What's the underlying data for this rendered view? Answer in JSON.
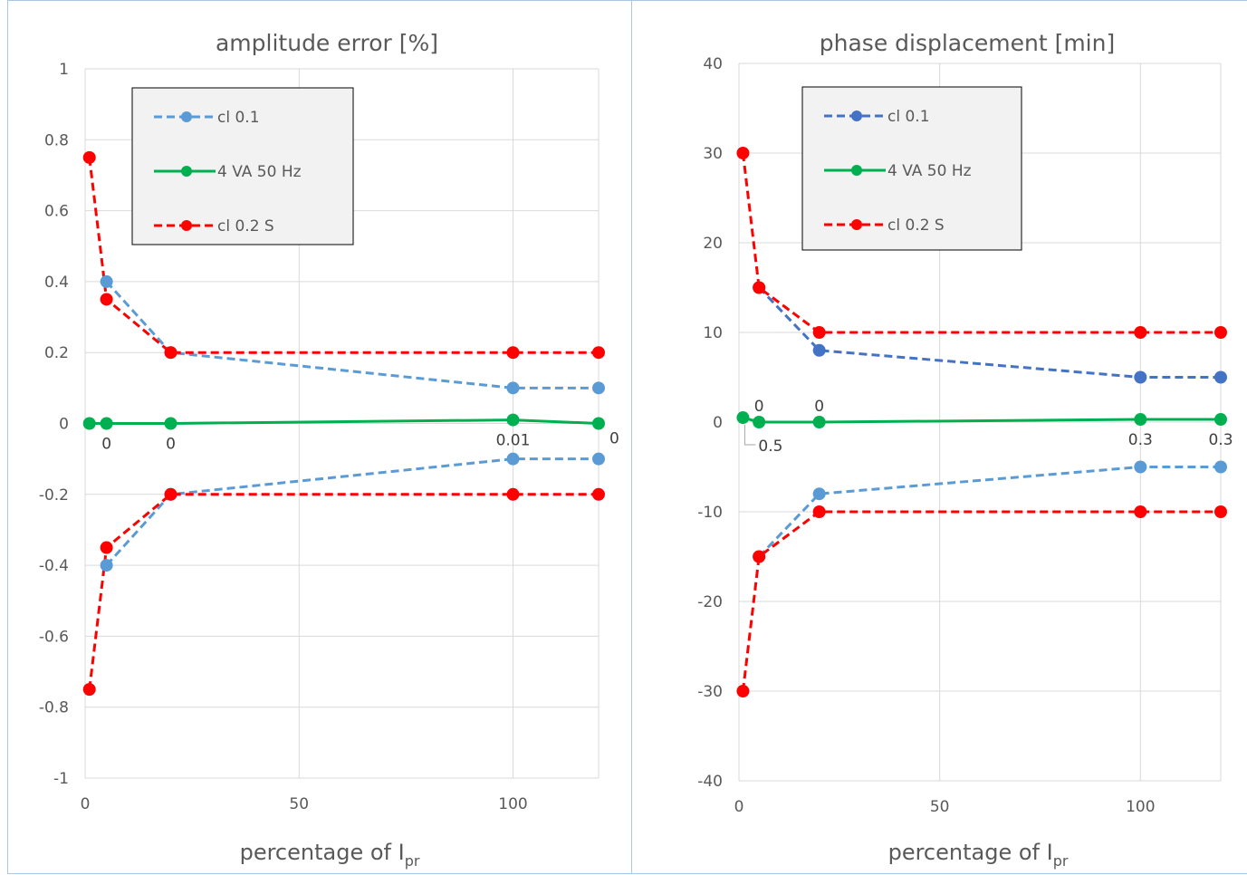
{
  "chart_data": [
    {
      "type": "line",
      "title": "amplitude error [%]",
      "xlabel": "percentage of ",
      "xlabel_symbol": "I",
      "xlabel_sub": "pr",
      "ylabel": "",
      "xlim": [
        0,
        120
      ],
      "ylim": [
        -1,
        1
      ],
      "xticks": [
        0,
        50,
        100
      ],
      "yticks": [
        -1,
        -0.8,
        -0.6,
        -0.4,
        -0.2,
        0,
        0.2,
        0.4,
        0.6,
        0.8,
        1
      ],
      "grid": true,
      "legend_position": "top-left",
      "series": [
        {
          "name": "cl 0.1",
          "color": "#5b9bd5",
          "style": "dashed",
          "x": [
            5,
            20,
            100,
            120
          ],
          "values": [
            0.4,
            0.2,
            0.1,
            0.1
          ]
        },
        {
          "name": "",
          "color": "#5b9bd5",
          "style": "dashed",
          "x": [
            5,
            20,
            100,
            120
          ],
          "values": [
            -0.4,
            -0.2,
            -0.1,
            -0.1
          ]
        },
        {
          "name": "4 VA 50 Hz",
          "color": "#00b050",
          "style": "solid",
          "x": [
            1,
            5,
            20,
            100,
            120
          ],
          "values": [
            0,
            0,
            0,
            0.01,
            0
          ]
        },
        {
          "name": "cl 0.2 S",
          "color": "#ff0000",
          "style": "dashed",
          "x": [
            1,
            5,
            20,
            100,
            120
          ],
          "values": [
            0.75,
            0.35,
            0.2,
            0.2,
            0.2
          ]
        },
        {
          "name": "",
          "color": "#ff0000",
          "style": "dashed",
          "x": [
            1,
            5,
            20,
            100,
            120
          ],
          "values": [
            -0.75,
            -0.35,
            -0.2,
            -0.2,
            -0.2
          ]
        }
      ],
      "data_labels": [
        {
          "x": 5,
          "y": 0,
          "text": "0",
          "pos": "below"
        },
        {
          "x": 20,
          "y": 0,
          "text": "0",
          "pos": "below"
        },
        {
          "x": 100,
          "y": 0.01,
          "text": "0.01",
          "pos": "below"
        },
        {
          "x": 120,
          "y": 0,
          "text": "0",
          "pos": "right"
        }
      ]
    },
    {
      "type": "line",
      "title": "phase displacement [min]",
      "xlabel": "percentage of ",
      "xlabel_symbol": "I",
      "xlabel_sub": "pr",
      "ylabel": "",
      "xlim": [
        0,
        120
      ],
      "ylim": [
        -40,
        40
      ],
      "xticks": [
        0,
        50,
        100
      ],
      "yticks": [
        -40,
        -30,
        -20,
        -10,
        0,
        10,
        20,
        30,
        40
      ],
      "grid": true,
      "legend_position": "top-left",
      "series": [
        {
          "name": "cl 0.1",
          "color": "#4472c4",
          "style": "dashed",
          "x": [
            5,
            20,
            100,
            120
          ],
          "values": [
            15,
            8,
            5,
            5
          ]
        },
        {
          "name": "",
          "color": "#5b9bd5",
          "style": "dashed",
          "x": [
            5,
            20,
            100,
            120
          ],
          "values": [
            -15,
            -8,
            -5,
            -5
          ]
        },
        {
          "name": "4 VA 50 Hz",
          "color": "#00b050",
          "style": "solid",
          "x": [
            1,
            5,
            20,
            100,
            120
          ],
          "values": [
            0.5,
            0,
            0,
            0.3,
            0.3
          ]
        },
        {
          "name": "cl 0.2 S",
          "color": "#ff0000",
          "style": "dashed",
          "x": [
            1,
            5,
            20,
            100,
            120
          ],
          "values": [
            30,
            15,
            10,
            10,
            10
          ]
        },
        {
          "name": "",
          "color": "#ff0000",
          "style": "dashed",
          "x": [
            1,
            5,
            20,
            100,
            120
          ],
          "values": [
            -30,
            -15,
            -10,
            -10,
            -10
          ]
        }
      ],
      "data_labels": [
        {
          "x": 1,
          "y": 0.5,
          "text": "0.5",
          "pos": "leader"
        },
        {
          "x": 5,
          "y": 0,
          "text": "0",
          "pos": "above"
        },
        {
          "x": 20,
          "y": 0,
          "text": "0",
          "pos": "above"
        },
        {
          "x": 100,
          "y": 0.3,
          "text": "0.3",
          "pos": "below"
        },
        {
          "x": 120,
          "y": 0.3,
          "text": "0.3",
          "pos": "below"
        }
      ]
    }
  ]
}
